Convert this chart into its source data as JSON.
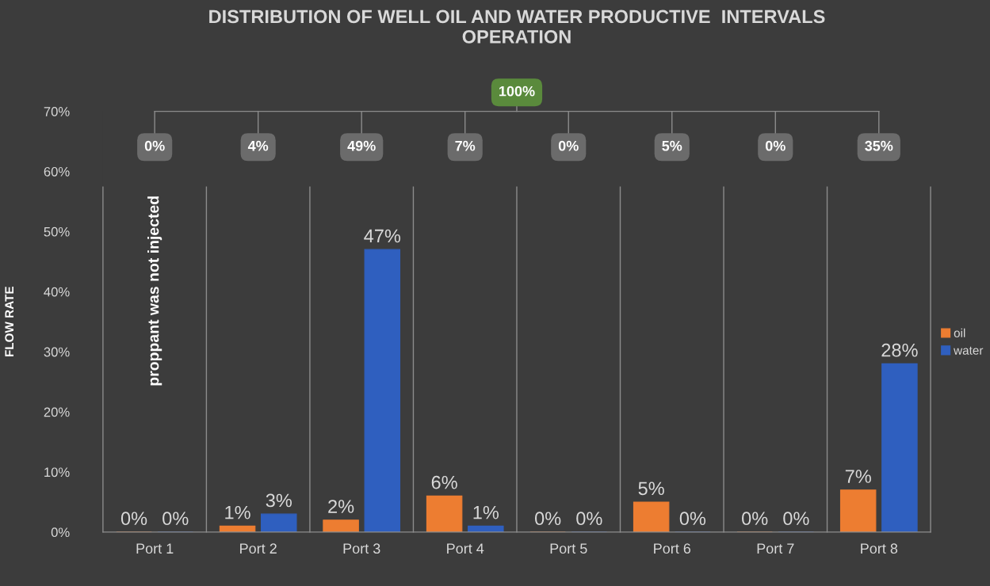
{
  "chart_data": {
    "type": "bar",
    "title": "DISTRIBUTION OF WELL OIL AND WATER PRODUCTIVE  INTERVALS\nOPERATION",
    "ylabel": "FLOW RATE",
    "categories": [
      "Port 1",
      "Port 2",
      "Port 3",
      "Port 4",
      "Port 5",
      "Port 6",
      "Port 7",
      "Port 8"
    ],
    "series": [
      {
        "name": "oil",
        "color": "#ed7d31",
        "values": [
          0,
          1,
          2,
          6,
          0,
          5,
          0,
          7
        ],
        "value_labels": [
          "0%",
          "1%",
          "2%",
          "6%",
          "0%",
          "5%",
          "0%",
          "7%"
        ]
      },
      {
        "name": "water",
        "color": "#2f5fbf",
        "values": [
          0,
          3,
          47,
          1,
          0,
          0,
          0,
          28
        ],
        "value_labels": [
          "0%",
          "3%",
          "47%",
          "1%",
          "0%",
          "0%",
          "0%",
          "28%"
        ]
      }
    ],
    "annotations": [
      "100%",
      "0%",
      "4%",
      "49%",
      "7%",
      "0%",
      "5%",
      "0%",
      "35%",
      "proppant was not injected"
    ],
    "ylim": [
      0,
      70
    ],
    "yticks": [
      {
        "value": 0,
        "label": "0%"
      },
      {
        "value": 10,
        "label": "10%"
      },
      {
        "value": 20,
        "label": "20%"
      },
      {
        "value": 30,
        "label": "30%"
      },
      {
        "value": 40,
        "label": "40%"
      },
      {
        "value": 50,
        "label": "50%"
      },
      {
        "value": 60,
        "label": "60%"
      },
      {
        "value": 70,
        "label": "70%"
      }
    ],
    "grid": false,
    "legend": "right"
  }
}
